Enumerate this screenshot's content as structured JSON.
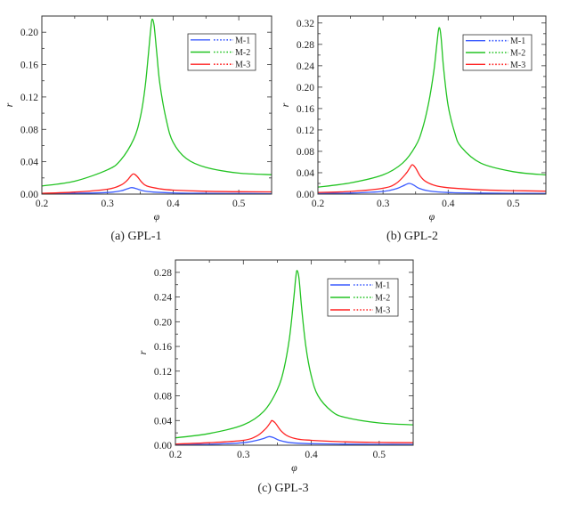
{
  "chart_data": [
    {
      "type": "line",
      "caption": "(a) GPL-1",
      "xlabel": "φ",
      "ylabel": "r",
      "xlim": [
        0.2,
        0.55
      ],
      "ylim": [
        0,
        0.22
      ],
      "xticks": [
        "0.2",
        "0.3",
        "0.4",
        "0.5"
      ],
      "yticks": [
        "0.00",
        "0.04",
        "0.08",
        "0.12",
        "0.16",
        "0.20"
      ],
      "legend": {
        "placement": "top-right",
        "entries": [
          "M-1",
          "M-2",
          "M-3"
        ]
      },
      "series": [
        {
          "name": "M-1",
          "color": "#3b5bff",
          "points": [
            [
              0.2,
              0.0005
            ],
            [
              0.25,
              0.001
            ],
            [
              0.3,
              0.002
            ],
            [
              0.32,
              0.004
            ],
            [
              0.33,
              0.0065
            ],
            [
              0.337,
              0.008
            ],
            [
              0.345,
              0.0065
            ],
            [
              0.355,
              0.004
            ],
            [
              0.37,
              0.0025
            ],
            [
              0.4,
              0.0015
            ],
            [
              0.45,
              0.001
            ],
            [
              0.5,
              0.0008
            ],
            [
              0.55,
              0.0006
            ]
          ]
        },
        {
          "name": "M-2",
          "color": "#22c322",
          "points": [
            [
              0.2,
              0.01
            ],
            [
              0.25,
              0.016
            ],
            [
              0.3,
              0.03
            ],
            [
              0.32,
              0.042
            ],
            [
              0.34,
              0.068
            ],
            [
              0.35,
              0.095
            ],
            [
              0.357,
              0.13
            ],
            [
              0.362,
              0.17
            ],
            [
              0.366,
              0.205
            ],
            [
              0.368,
              0.216
            ],
            [
              0.371,
              0.208
            ],
            [
              0.375,
              0.175
            ],
            [
              0.38,
              0.135
            ],
            [
              0.39,
              0.09
            ],
            [
              0.4,
              0.064
            ],
            [
              0.42,
              0.044
            ],
            [
              0.45,
              0.033
            ],
            [
              0.5,
              0.026
            ],
            [
              0.55,
              0.024
            ]
          ]
        },
        {
          "name": "M-3",
          "color": "#ff2222",
          "points": [
            [
              0.2,
              0.001
            ],
            [
              0.25,
              0.0025
            ],
            [
              0.3,
              0.006
            ],
            [
              0.32,
              0.011
            ],
            [
              0.33,
              0.017
            ],
            [
              0.336,
              0.023
            ],
            [
              0.34,
              0.025
            ],
            [
              0.345,
              0.022
            ],
            [
              0.352,
              0.015
            ],
            [
              0.36,
              0.01
            ],
            [
              0.38,
              0.0065
            ],
            [
              0.4,
              0.005
            ],
            [
              0.45,
              0.0035
            ],
            [
              0.5,
              0.003
            ],
            [
              0.55,
              0.0028
            ]
          ]
        }
      ]
    },
    {
      "type": "line",
      "caption": "(b) GPL-2",
      "xlabel": "φ",
      "ylabel": "r",
      "xlim": [
        0.2,
        0.55
      ],
      "ylim": [
        0,
        0.333
      ],
      "xticks": [
        "0.2",
        "0.3",
        "0.4",
        "0.5"
      ],
      "yticks": [
        "0.00",
        "0.04",
        "0.08",
        "0.12",
        "0.16",
        "0.20",
        "0.24",
        "0.28",
        "0.32"
      ],
      "legend": {
        "placement": "top-right",
        "entries": [
          "M-1",
          "M-2",
          "M-3"
        ]
      },
      "series": [
        {
          "name": "M-1",
          "color": "#3b5bff",
          "points": [
            [
              0.2,
              0.001
            ],
            [
              0.25,
              0.002
            ],
            [
              0.3,
              0.005
            ],
            [
              0.32,
              0.01
            ],
            [
              0.33,
              0.015
            ],
            [
              0.34,
              0.02
            ],
            [
              0.347,
              0.017
            ],
            [
              0.355,
              0.011
            ],
            [
              0.37,
              0.006
            ],
            [
              0.4,
              0.003
            ],
            [
              0.45,
              0.002
            ],
            [
              0.5,
              0.0015
            ],
            [
              0.55,
              0.0012
            ]
          ]
        },
        {
          "name": "M-2",
          "color": "#22c322",
          "points": [
            [
              0.2,
              0.013
            ],
            [
              0.25,
              0.021
            ],
            [
              0.3,
              0.036
            ],
            [
              0.33,
              0.058
            ],
            [
              0.35,
              0.09
            ],
            [
              0.36,
              0.12
            ],
            [
              0.37,
              0.17
            ],
            [
              0.378,
              0.23
            ],
            [
              0.383,
              0.285
            ],
            [
              0.386,
              0.311
            ],
            [
              0.389,
              0.295
            ],
            [
              0.393,
              0.235
            ],
            [
              0.4,
              0.165
            ],
            [
              0.41,
              0.115
            ],
            [
              0.42,
              0.088
            ],
            [
              0.45,
              0.058
            ],
            [
              0.5,
              0.042
            ],
            [
              0.55,
              0.036
            ]
          ]
        },
        {
          "name": "M-3",
          "color": "#ff2222",
          "points": [
            [
              0.2,
              0.003
            ],
            [
              0.25,
              0.005
            ],
            [
              0.3,
              0.011
            ],
            [
              0.32,
              0.02
            ],
            [
              0.335,
              0.038
            ],
            [
              0.342,
              0.051
            ],
            [
              0.345,
              0.055
            ],
            [
              0.35,
              0.049
            ],
            [
              0.357,
              0.034
            ],
            [
              0.365,
              0.024
            ],
            [
              0.38,
              0.016
            ],
            [
              0.4,
              0.012
            ],
            [
              0.45,
              0.008
            ],
            [
              0.5,
              0.0065
            ],
            [
              0.55,
              0.0055
            ]
          ]
        }
      ]
    },
    {
      "type": "line",
      "caption": "(c) GPL-3",
      "xlabel": "φ",
      "ylabel": "r",
      "xlim": [
        0.2,
        0.55
      ],
      "ylim": [
        0,
        0.3
      ],
      "xticks": [
        "0.2",
        "0.3",
        "0.4",
        "0.5"
      ],
      "yticks": [
        "0.00",
        "0.04",
        "0.08",
        "0.12",
        "0.16",
        "0.20",
        "0.24",
        "0.28"
      ],
      "legend": {
        "placement": "top-right",
        "entries": [
          "M-1",
          "M-2",
          "M-3"
        ]
      },
      "series": [
        {
          "name": "M-1",
          "color": "#3b5bff",
          "points": [
            [
              0.2,
              0.0008
            ],
            [
              0.25,
              0.0015
            ],
            [
              0.3,
              0.004
            ],
            [
              0.32,
              0.008
            ],
            [
              0.33,
              0.011
            ],
            [
              0.338,
              0.014
            ],
            [
              0.345,
              0.012
            ],
            [
              0.353,
              0.008
            ],
            [
              0.37,
              0.004
            ],
            [
              0.4,
              0.0025
            ],
            [
              0.45,
              0.0018
            ],
            [
              0.5,
              0.0014
            ],
            [
              0.55,
              0.0012
            ]
          ]
        },
        {
          "name": "M-2",
          "color": "#22c322",
          "points": [
            [
              0.2,
              0.012
            ],
            [
              0.25,
              0.019
            ],
            [
              0.3,
              0.033
            ],
            [
              0.33,
              0.055
            ],
            [
              0.35,
              0.09
            ],
            [
              0.36,
              0.125
            ],
            [
              0.368,
              0.175
            ],
            [
              0.374,
              0.235
            ],
            [
              0.377,
              0.27
            ],
            [
              0.379,
              0.283
            ],
            [
              0.382,
              0.27
            ],
            [
              0.386,
              0.22
            ],
            [
              0.392,
              0.16
            ],
            [
              0.4,
              0.112
            ],
            [
              0.41,
              0.08
            ],
            [
              0.43,
              0.055
            ],
            [
              0.45,
              0.045
            ],
            [
              0.5,
              0.036
            ],
            [
              0.55,
              0.033
            ]
          ]
        },
        {
          "name": "M-3",
          "color": "#ff2222",
          "points": [
            [
              0.2,
              0.002
            ],
            [
              0.25,
              0.004
            ],
            [
              0.3,
              0.008
            ],
            [
              0.32,
              0.015
            ],
            [
              0.333,
              0.027
            ],
            [
              0.34,
              0.037
            ],
            [
              0.342,
              0.04
            ],
            [
              0.347,
              0.036
            ],
            [
              0.355,
              0.024
            ],
            [
              0.365,
              0.015
            ],
            [
              0.38,
              0.01
            ],
            [
              0.4,
              0.008
            ],
            [
              0.45,
              0.0055
            ],
            [
              0.5,
              0.0045
            ],
            [
              0.55,
              0.004
            ]
          ]
        }
      ]
    }
  ]
}
